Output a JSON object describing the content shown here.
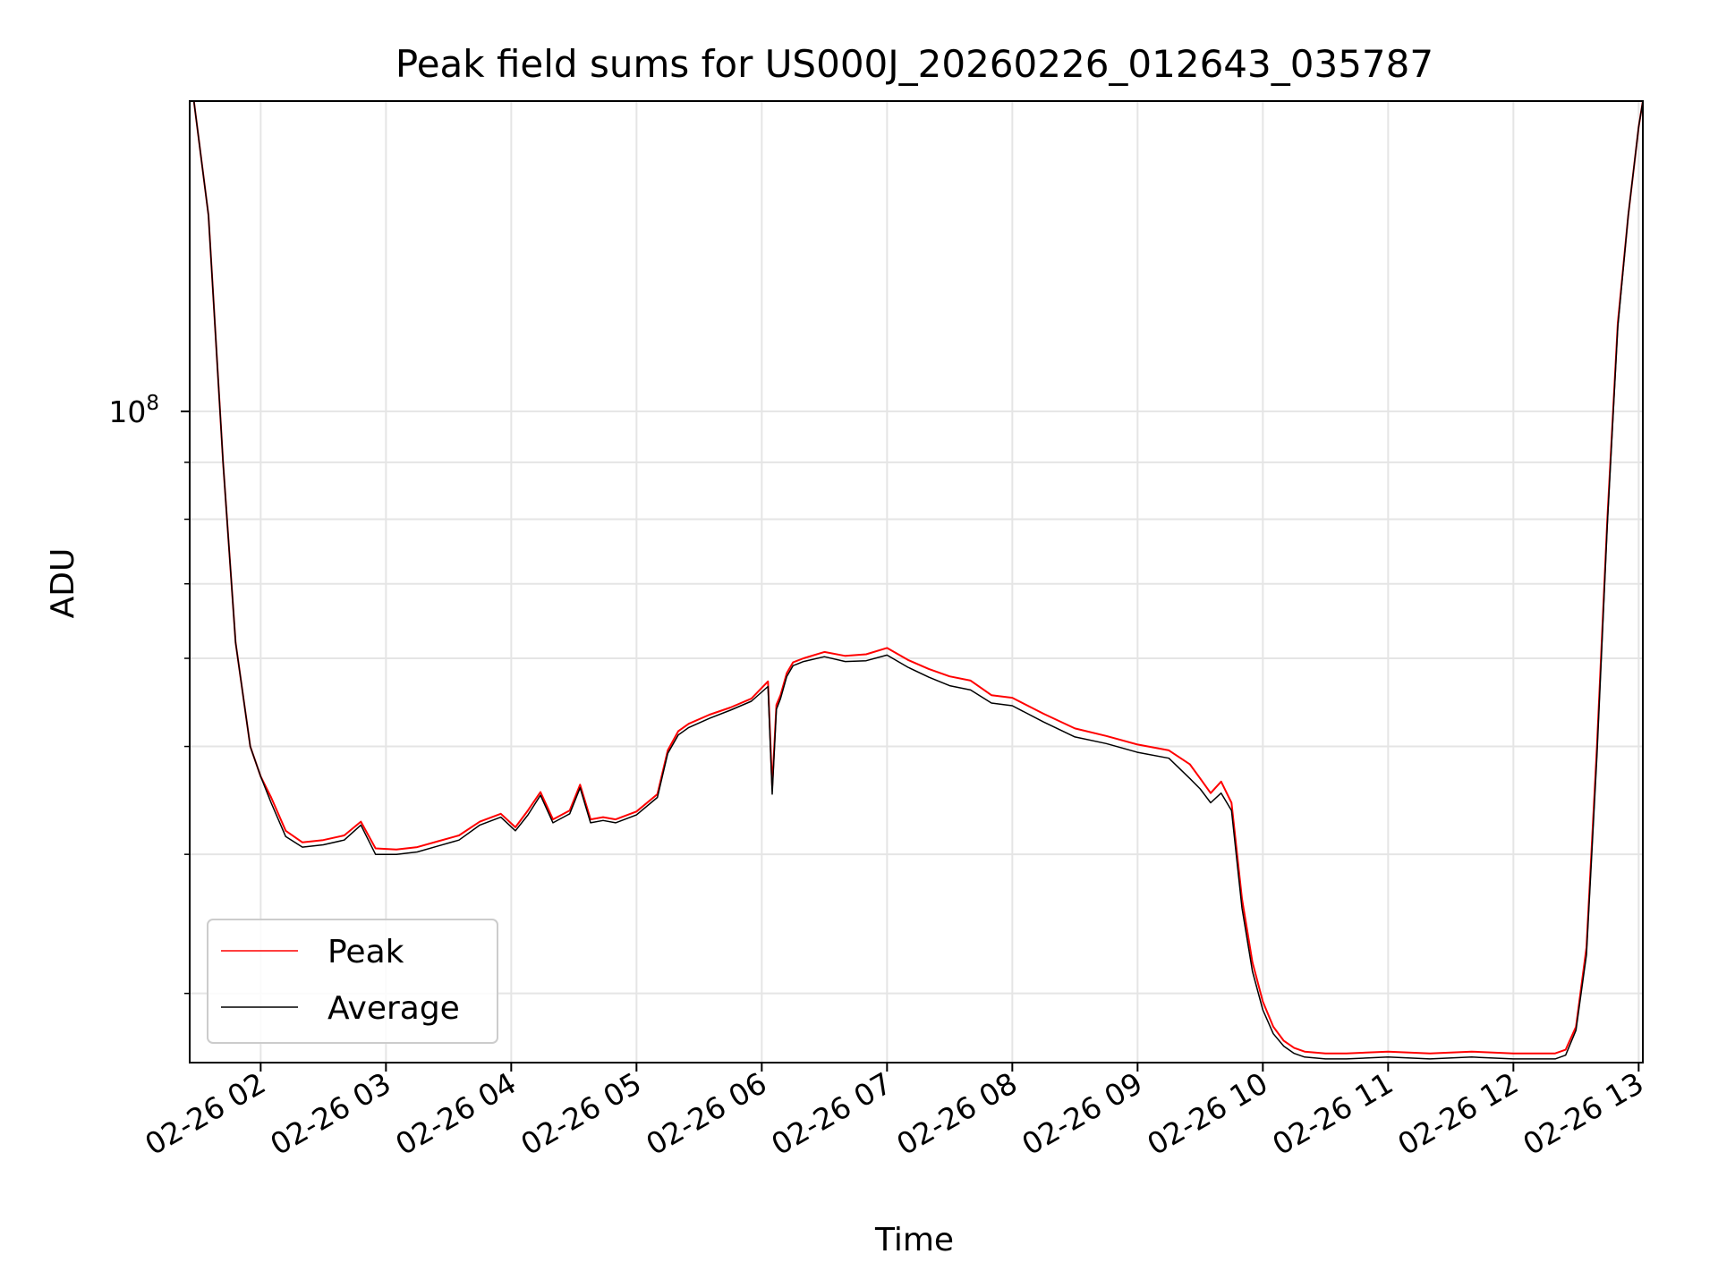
{
  "chart_data": {
    "type": "line",
    "title": "Peak field sums for US000J_20260226_012643_035787",
    "xlabel": "Time",
    "ylabel": "ADU",
    "y_scale": "log",
    "grid": true,
    "legend_position": "lower-left",
    "x_range": [
      "02-26 01:26",
      "02-26 13:02"
    ],
    "y_range": [
      26000000,
      190000000
    ],
    "x_ticks": [
      "02-26 02",
      "02-26 03",
      "02-26 04",
      "02-26 05",
      "02-26 06",
      "02-26 07",
      "02-26 08",
      "02-26 09",
      "02-26 10",
      "02-26 11",
      "02-26 12",
      "02-26 13"
    ],
    "y_tick_label": {
      "base": "10",
      "exponent": "8",
      "value": 100000000
    },
    "x": [
      "02-26 01:28",
      "02-26 01:35",
      "02-26 01:42",
      "02-26 01:48",
      "02-26 01:55",
      "02-26 02:00",
      "02-26 02:05",
      "02-26 02:12",
      "02-26 02:20",
      "02-26 02:30",
      "02-26 02:40",
      "02-26 02:48",
      "02-26 02:55",
      "02-26 03:05",
      "02-26 03:15",
      "02-26 03:25",
      "02-26 03:35",
      "02-26 03:45",
      "02-26 03:55",
      "02-26 04:02",
      "02-26 04:08",
      "02-26 04:14",
      "02-26 04:20",
      "02-26 04:28",
      "02-26 04:33",
      "02-26 04:38",
      "02-26 04:44",
      "02-26 04:50",
      "02-26 05:00",
      "02-26 05:10",
      "02-26 05:15",
      "02-26 05:20",
      "02-26 05:25",
      "02-26 05:35",
      "02-26 05:45",
      "02-26 05:55",
      "02-26 06:03",
      "02-26 06:05",
      "02-26 06:07",
      "02-26 06:09",
      "02-26 06:12",
      "02-26 06:15",
      "02-26 06:20",
      "02-26 06:30",
      "02-26 06:40",
      "02-26 06:50",
      "02-26 07:00",
      "02-26 07:10",
      "02-26 07:20",
      "02-26 07:30",
      "02-26 07:40",
      "02-26 07:50",
      "02-26 08:00",
      "02-26 08:15",
      "02-26 08:30",
      "02-26 08:45",
      "02-26 09:00",
      "02-26 09:15",
      "02-26 09:25",
      "02-26 09:30",
      "02-26 09:35",
      "02-26 09:40",
      "02-26 09:45",
      "02-26 09:50",
      "02-26 09:55",
      "02-26 10:00",
      "02-26 10:05",
      "02-26 10:10",
      "02-26 10:15",
      "02-26 10:20",
      "02-26 10:30",
      "02-26 10:40",
      "02-26 11:00",
      "02-26 11:20",
      "02-26 11:40",
      "02-26 12:00",
      "02-26 12:15",
      "02-26 12:20",
      "02-26 12:25",
      "02-26 12:30",
      "02-26 12:35",
      "02-26 12:40",
      "02-26 12:45",
      "02-26 12:50",
      "02-26 12:55",
      "02-26 13:00",
      "02-26 13:02"
    ],
    "series": [
      {
        "name": "Peak",
        "color": "#ff0000",
        "values": [
          190000000,
          150000000,
          90000000,
          62000000,
          50000000,
          47000000,
          45000000,
          42000000,
          41000000,
          41200000,
          41600000,
          42800000,
          40500000,
          40400000,
          40600000,
          41100000,
          41600000,
          42800000,
          43500000,
          42300000,
          43800000,
          45500000,
          43000000,
          43800000,
          46200000,
          43000000,
          43200000,
          43000000,
          43700000,
          45300000,
          49600000,
          51600000,
          52400000,
          53400000,
          54200000,
          55200000,
          57200000,
          46000000,
          54500000,
          55600000,
          58200000,
          59500000,
          60000000,
          60800000,
          60300000,
          60500000,
          61300000,
          59800000,
          58700000,
          57800000,
          57300000,
          55600000,
          55300000,
          53500000,
          51900000,
          51100000,
          50200000,
          49600000,
          48200000,
          46800000,
          45400000,
          46500000,
          44500000,
          36500000,
          32000000,
          29500000,
          28000000,
          27200000,
          26800000,
          26600000,
          26500000,
          26500000,
          26600000,
          26500000,
          26600000,
          26500000,
          26500000,
          26500000,
          26700000,
          28000000,
          33000000,
          50000000,
          80000000,
          120000000,
          150000000,
          180000000,
          190000000
        ]
      },
      {
        "name": "Average",
        "color": "#000000",
        "values": [
          190000000,
          150000000,
          90000000,
          62000000,
          50000000,
          47000000,
          44500000,
          41500000,
          40600000,
          40800000,
          41200000,
          42500000,
          40000000,
          40000000,
          40200000,
          40700000,
          41200000,
          42500000,
          43200000,
          42000000,
          43400000,
          45200000,
          42700000,
          43500000,
          45900000,
          42700000,
          42900000,
          42700000,
          43400000,
          45000000,
          49300000,
          51200000,
          52000000,
          53000000,
          53900000,
          54900000,
          56600000,
          45300000,
          54000000,
          55200000,
          57800000,
          59100000,
          59600000,
          60200000,
          59600000,
          59700000,
          60400000,
          58900000,
          57700000,
          56700000,
          56200000,
          54700000,
          54400000,
          52600000,
          51000000,
          50300000,
          49400000,
          48800000,
          46800000,
          45800000,
          44500000,
          45400000,
          43800000,
          35800000,
          31400000,
          29000000,
          27600000,
          26900000,
          26500000,
          26300000,
          26200000,
          26200000,
          26300000,
          26200000,
          26300000,
          26200000,
          26200000,
          26200000,
          26400000,
          27800000,
          32500000,
          49000000,
          79000000,
          119000000,
          150000000,
          180000000,
          190000000
        ]
      }
    ]
  }
}
